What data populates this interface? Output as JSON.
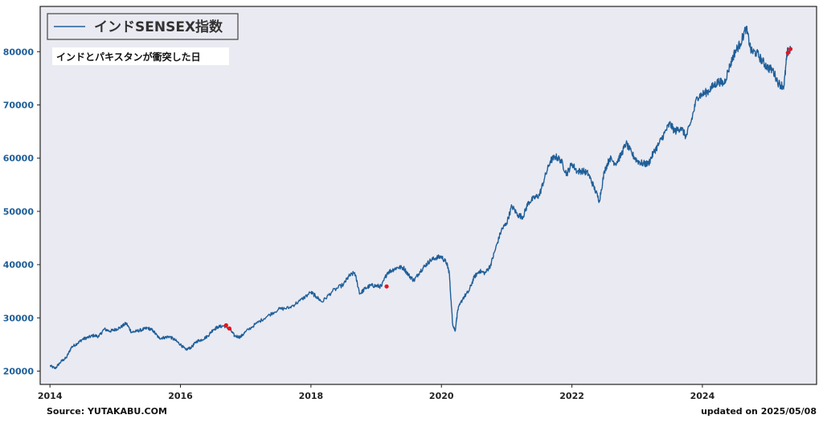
{
  "footer": {
    "source": "Source: YUTAKABU.COM",
    "updated": "updated on 2025/05/08"
  },
  "colors": {
    "plot_bg": "#eaeaf2",
    "line": "#1f5f99",
    "marker": "#e8141a"
  },
  "chart_data": {
    "type": "line",
    "title": "",
    "xlabel": "",
    "ylabel": "",
    "xlim": [
      2013.85,
      2025.75
    ],
    "ylim": [
      17500,
      88500
    ],
    "x_ticks": [
      2014,
      2016,
      2018,
      2020,
      2022,
      2024
    ],
    "x_tick_labels": [
      "2014",
      "2016",
      "2018",
      "2020",
      "2022",
      "2024"
    ],
    "y_ticks": [
      20000,
      30000,
      40000,
      50000,
      60000,
      70000,
      80000
    ],
    "y_tick_labels": [
      "20000",
      "30000",
      "40000",
      "50000",
      "60000",
      "70000",
      "80000"
    ],
    "grid": false,
    "legend_position": "top-left",
    "series": [
      {
        "name": "インドSENSEX指数",
        "x": [
          2014.0,
          2014.08,
          2014.17,
          2014.25,
          2014.33,
          2014.42,
          2014.5,
          2014.58,
          2014.67,
          2014.75,
          2014.83,
          2014.92,
          2015.0,
          2015.08,
          2015.17,
          2015.25,
          2015.33,
          2015.42,
          2015.5,
          2015.58,
          2015.67,
          2015.75,
          2015.83,
          2015.92,
          2016.0,
          2016.08,
          2016.17,
          2016.25,
          2016.33,
          2016.42,
          2016.5,
          2016.58,
          2016.67,
          2016.75,
          2016.83,
          2016.92,
          2017.0,
          2017.17,
          2017.33,
          2017.5,
          2017.67,
          2017.83,
          2018.0,
          2018.08,
          2018.17,
          2018.33,
          2018.5,
          2018.58,
          2018.67,
          2018.75,
          2018.83,
          2018.92,
          2019.0,
          2019.08,
          2019.17,
          2019.25,
          2019.33,
          2019.42,
          2019.5,
          2019.58,
          2019.67,
          2019.75,
          2019.83,
          2019.92,
          2020.0,
          2020.08,
          2020.12,
          2020.17,
          2020.21,
          2020.25,
          2020.33,
          2020.42,
          2020.5,
          2020.58,
          2020.67,
          2020.75,
          2020.83,
          2020.92,
          2021.0,
          2021.08,
          2021.17,
          2021.25,
          2021.33,
          2021.42,
          2021.5,
          2021.58,
          2021.67,
          2021.75,
          2021.83,
          2021.92,
          2022.0,
          2022.08,
          2022.17,
          2022.25,
          2022.33,
          2022.42,
          2022.5,
          2022.58,
          2022.67,
          2022.75,
          2022.83,
          2022.92,
          2023.0,
          2023.08,
          2023.17,
          2023.25,
          2023.33,
          2023.42,
          2023.5,
          2023.58,
          2023.67,
          2023.75,
          2023.83,
          2023.92,
          2024.0,
          2024.08,
          2024.17,
          2024.25,
          2024.33,
          2024.42,
          2024.5,
          2024.58,
          2024.67,
          2024.75,
          2024.83,
          2024.92,
          2025.0,
          2025.08,
          2025.17,
          2025.25,
          2025.3,
          2025.35
        ],
        "values": [
          21000,
          20500,
          21800,
          22500,
          24500,
          25200,
          26000,
          26300,
          26700,
          26500,
          27900,
          27500,
          27800,
          28200,
          29000,
          27300,
          27500,
          27800,
          28100,
          27600,
          26200,
          26300,
          26500,
          25800,
          25000,
          24000,
          24500,
          25600,
          25900,
          26600,
          27800,
          28300,
          28500,
          28000,
          26600,
          26400,
          27400,
          29000,
          30300,
          31600,
          31900,
          33200,
          34800,
          34000,
          33000,
          35000,
          36300,
          37800,
          38500,
          34500,
          35500,
          36100,
          36000,
          35900,
          38500,
          39000,
          39500,
          39400,
          38000,
          37000,
          38700,
          39800,
          40800,
          41300,
          41500,
          40300,
          38500,
          29000,
          27500,
          31500,
          33700,
          35000,
          37600,
          38800,
          38400,
          39800,
          43000,
          46500,
          47800,
          51000,
          49300,
          49000,
          51600,
          52500,
          53000,
          56200,
          59500,
          60300,
          59600,
          57000,
          59000,
          57500,
          57600,
          57100,
          54800,
          52000,
          57600,
          60000,
          59000,
          60500,
          62800,
          60800,
          59500,
          59000,
          58900,
          61000,
          62600,
          64700,
          66500,
          65000,
          65800,
          64000,
          67000,
          71500,
          72000,
          72500,
          73600,
          74400,
          74000,
          77300,
          80000,
          81500,
          84500,
          80000,
          79800,
          78200,
          77000,
          76500,
          74000,
          73500,
          79800,
          80500
        ]
      }
    ],
    "annotation": {
      "label": "インドとパキスタンが衝突した日",
      "points": [
        {
          "x": 2016.7,
          "y": 28600
        },
        {
          "x": 2016.75,
          "y": 28000
        },
        {
          "x": 2019.16,
          "y": 35900
        },
        {
          "x": 2025.31,
          "y": 79800
        },
        {
          "x": 2025.35,
          "y": 80500
        }
      ]
    }
  }
}
